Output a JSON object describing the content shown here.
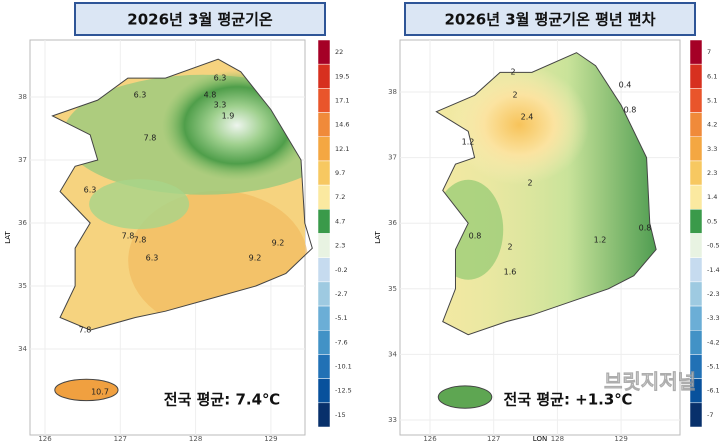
{
  "panels": [
    {
      "title": "2026년 3월 평균기온",
      "y_label": "LAT",
      "x_ticks": [
        126,
        127,
        128,
        129
      ],
      "y_ticks": [
        38,
        37,
        36,
        35,
        34
      ],
      "contour_labels": [
        "6.3",
        "4.8",
        "3.3",
        "1.9",
        "6.3",
        "7.8",
        "6.3",
        "7.8",
        "7.8",
        "6.3",
        "9.2",
        "9.2",
        "7.8",
        "10.7"
      ],
      "average": "전국 평균: 7.4℃",
      "colorbar": [
        {
          "value": 22,
          "color": "#a50026"
        },
        {
          "value": 19.5,
          "color": "#d7301f"
        },
        {
          "value": 17.1,
          "color": "#e9552b"
        },
        {
          "value": 14.6,
          "color": "#f08a3a"
        },
        {
          "value": 12.1,
          "color": "#f4a742"
        },
        {
          "value": 9.7,
          "color": "#f7c861"
        },
        {
          "value": 7.2,
          "color": "#fbe9a0"
        },
        {
          "value": 4.7,
          "color": "#3a9a4a"
        },
        {
          "value": 2.3,
          "color": "#e8f3e2"
        },
        {
          "value": -0.2,
          "color": "#c6dbef"
        },
        {
          "value": -2.7,
          "color": "#9ecae1"
        },
        {
          "value": -5.1,
          "color": "#6baed6"
        },
        {
          "value": -7.6,
          "color": "#4292c6"
        },
        {
          "value": -10.1,
          "color": "#2171b5"
        },
        {
          "value": -12.5,
          "color": "#08519c"
        },
        {
          "value": -15,
          "color": "#08306b"
        }
      ]
    },
    {
      "title": "2026년 3월 평균기온 평년 편차",
      "y_label": "LAT",
      "x_label": "LON",
      "x_ticks": [
        126,
        127,
        128,
        129
      ],
      "y_ticks": [
        38,
        37,
        36,
        35,
        34,
        33
      ],
      "contour_labels": [
        "2",
        "2",
        "2.4",
        "1.2",
        "2",
        "0.8",
        "2",
        "1.6",
        "1.2",
        "0.8",
        "0.4",
        "0.8"
      ],
      "average": "전국 평균: +1.3℃",
      "colorbar": [
        {
          "value": 7,
          "color": "#a50026"
        },
        {
          "value": 6.1,
          "color": "#d7301f"
        },
        {
          "value": 5.1,
          "color": "#e9552b"
        },
        {
          "value": 4.2,
          "color": "#f08a3a"
        },
        {
          "value": 3.3,
          "color": "#f4a742"
        },
        {
          "value": 2.3,
          "color": "#f7c861"
        },
        {
          "value": 1.4,
          "color": "#fbe9a0"
        },
        {
          "value": 0.5,
          "color": "#3a9a4a"
        },
        {
          "value": -0.5,
          "color": "#e8f3e2"
        },
        {
          "value": -1.4,
          "color": "#c6dbef"
        },
        {
          "value": -2.3,
          "color": "#9ecae1"
        },
        {
          "value": -3.3,
          "color": "#6baed6"
        },
        {
          "value": -4.2,
          "color": "#4292c6"
        },
        {
          "value": -5.1,
          "color": "#2171b5"
        },
        {
          "value": -6.1,
          "color": "#08519c"
        },
        {
          "value": -7,
          "color": "#08306b"
        }
      ]
    }
  ],
  "watermark": "브릿지저널"
}
